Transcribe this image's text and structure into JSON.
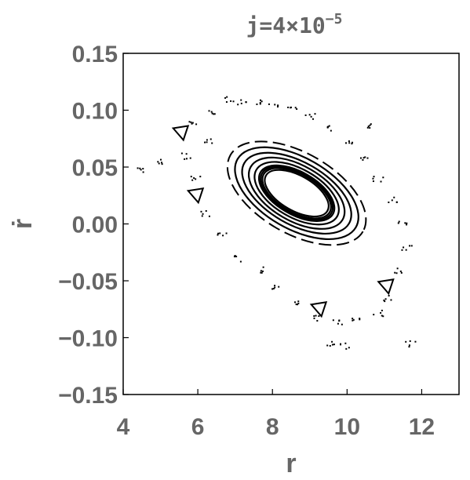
{
  "chart_data": {
    "type": "scatter",
    "title": {
      "prefix": "j=4×10",
      "exponent": "−5"
    },
    "xlabel": "r",
    "ylabel": "ṙ",
    "xlim": [
      4,
      13
    ],
    "ylim": [
      -0.15,
      0.15
    ],
    "x_ticks": [
      4,
      6,
      8,
      10,
      12
    ],
    "x_tick_labels": [
      "4",
      "6",
      "8",
      "10",
      "12"
    ],
    "y_ticks": [
      -0.15,
      -0.1,
      -0.05,
      0.0,
      0.05,
      0.1,
      0.15
    ],
    "y_tick_labels": [
      "−0.15",
      "−0.10",
      "−0.05",
      "0.00",
      "0.05",
      "0.10",
      "0.15"
    ],
    "grid": false,
    "frame": true,
    "colors": {
      "marks": "#000000",
      "text": "#666666",
      "frame": "#000000"
    },
    "center": {
      "x": 8.65,
      "y": 0.027
    },
    "tilt_deg": 30,
    "closed_curves": [
      {
        "a": 0.95,
        "b": 0.55,
        "style": "solid"
      },
      {
        "a": 1.02,
        "b": 0.6,
        "style": "solid"
      },
      {
        "a": 1.07,
        "b": 0.64,
        "style": "solid"
      },
      {
        "a": 1.12,
        "b": 0.67,
        "style": "solid"
      },
      {
        "a": 1.25,
        "b": 0.76,
        "style": "solid"
      },
      {
        "a": 1.42,
        "b": 0.87,
        "style": "solid"
      },
      {
        "a": 1.62,
        "b": 0.98,
        "style": "solid"
      },
      {
        "a": 1.83,
        "b": 1.12,
        "style": "solid"
      },
      {
        "a": 2.05,
        "b": 1.27,
        "style": "dashed"
      }
    ],
    "islands": [
      {
        "x": 5.55,
        "y": 0.08
      },
      {
        "x": 5.95,
        "y": 0.025
      },
      {
        "x": 9.25,
        "y": -0.075
      },
      {
        "x": 11.05,
        "y": -0.055
      }
    ],
    "chaotic_band": [
      {
        "x": 7.2,
        "y": 0.108
      },
      {
        "x": 7.6,
        "y": 0.107
      },
      {
        "x": 8.0,
        "y": 0.106
      },
      {
        "x": 8.5,
        "y": 0.102
      },
      {
        "x": 9.0,
        "y": 0.095
      },
      {
        "x": 9.5,
        "y": 0.085
      },
      {
        "x": 10.0,
        "y": 0.072
      },
      {
        "x": 10.4,
        "y": 0.058
      },
      {
        "x": 10.8,
        "y": 0.04
      },
      {
        "x": 11.2,
        "y": 0.022
      },
      {
        "x": 11.5,
        "y": 0.0
      },
      {
        "x": 11.6,
        "y": -0.02
      },
      {
        "x": 11.4,
        "y": -0.04
      },
      {
        "x": 11.1,
        "y": -0.065
      },
      {
        "x": 10.8,
        "y": -0.078
      },
      {
        "x": 10.2,
        "y": -0.083
      },
      {
        "x": 9.7,
        "y": -0.085
      },
      {
        "x": 9.1,
        "y": -0.082
      },
      {
        "x": 8.6,
        "y": -0.07
      },
      {
        "x": 8.1,
        "y": -0.055
      },
      {
        "x": 7.6,
        "y": -0.04
      },
      {
        "x": 7.1,
        "y": -0.03
      },
      {
        "x": 6.6,
        "y": -0.008
      },
      {
        "x": 6.2,
        "y": 0.01
      },
      {
        "x": 5.9,
        "y": 0.04
      },
      {
        "x": 5.7,
        "y": 0.06
      },
      {
        "x": 5.8,
        "y": 0.09
      },
      {
        "x": 6.3,
        "y": 0.1
      },
      {
        "x": 6.8,
        "y": 0.11
      },
      {
        "x": 4.9,
        "y": 0.055
      },
      {
        "x": 4.4,
        "y": 0.048
      },
      {
        "x": 11.7,
        "y": -0.105
      },
      {
        "x": 9.9,
        "y": -0.107
      },
      {
        "x": 9.5,
        "y": -0.105
      },
      {
        "x": 6.3,
        "y": 0.073
      },
      {
        "x": 10.5,
        "y": 0.086
      }
    ]
  }
}
